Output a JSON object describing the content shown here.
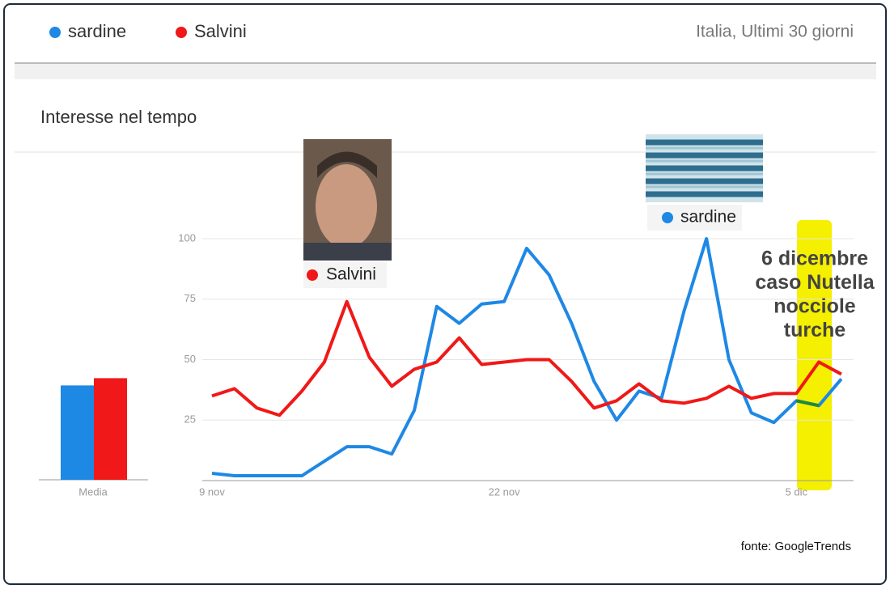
{
  "chart_data": {
    "type": "line",
    "title": "Interesse nel tempo",
    "subtitle": "Italia, Ultimi 30 giorni",
    "source": "fonte: GoogleTrends",
    "mean_label": "Media",
    "categories": [
      "9 nov",
      null,
      null,
      null,
      null,
      null,
      null,
      null,
      null,
      null,
      null,
      null,
      null,
      "22 nov",
      null,
      null,
      null,
      null,
      null,
      null,
      null,
      null,
      null,
      null,
      null,
      null,
      "5 dic",
      null,
      null
    ],
    "series": [
      {
        "name": "sardine",
        "color": "#1e88e5",
        "mean": 39,
        "values": [
          3,
          2,
          2,
          2,
          2,
          8,
          14,
          14,
          11,
          29,
          72,
          65,
          73,
          74,
          96,
          85,
          65,
          41,
          25,
          37,
          34,
          70,
          100,
          50,
          28,
          24,
          33,
          31,
          42
        ]
      },
      {
        "name": "Salvini",
        "color": "#f01818",
        "mean": 42,
        "values": [
          35,
          38,
          30,
          27,
          37,
          49,
          74,
          51,
          39,
          46,
          49,
          59,
          48,
          49,
          50,
          50,
          41,
          30,
          33,
          40,
          33,
          32,
          34,
          39,
          34,
          36,
          36,
          49,
          44
        ]
      }
    ],
    "ylim": [
      0,
      100
    ],
    "yticks": [
      25,
      50,
      75,
      100
    ],
    "grid": true,
    "annotation": [
      "6 dicembre",
      "caso Nutella",
      "nocciole",
      "turche"
    ]
  }
}
